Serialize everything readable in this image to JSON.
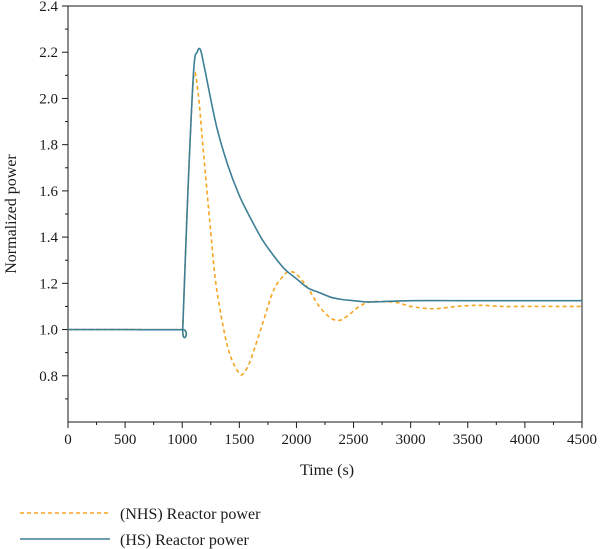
{
  "chart_data": {
    "type": "line",
    "title": "",
    "xlabel": "Time (s)",
    "ylabel": "Normalized power",
    "xlim": [
      0,
      4500
    ],
    "ylim": [
      0.6,
      2.4
    ],
    "xticks": [
      0,
      500,
      1000,
      1500,
      2000,
      2500,
      3000,
      3500,
      4000,
      4500
    ],
    "yticks": [
      0.8,
      1.0,
      1.2,
      1.4,
      1.6,
      1.8,
      2.0,
      2.2,
      2.4
    ],
    "xtick_labels": [
      "0",
      "500",
      "1000",
      "1500",
      "2000",
      "2500",
      "3000",
      "3500",
      "4000",
      "4500"
    ],
    "ytick_labels": [
      "0.8",
      "1.0",
      "1.2",
      "1.4",
      "1.6",
      "1.8",
      "2.0",
      "2.2",
      "2.4"
    ],
    "grid": false,
    "legend_position": "bottom-left, below plot",
    "series": [
      {
        "name": "(NHS) Reactor power",
        "color": "#f5a623",
        "style": "dashed",
        "x": [
          0,
          500,
          1000,
          1005,
          1050,
          1100,
          1140,
          1180,
          1250,
          1300,
          1400,
          1500,
          1550,
          1600,
          1700,
          1800,
          1900,
          1950,
          2000,
          2100,
          2200,
          2300,
          2380,
          2450,
          2550,
          2650,
          2800,
          2900,
          3000,
          3200,
          3400,
          3600,
          3800,
          4000,
          4200,
          4500
        ],
        "y": [
          1.0,
          1.0,
          1.0,
          1.01,
          1.6,
          2.09,
          2.02,
          1.8,
          1.42,
          1.18,
          0.92,
          0.81,
          0.82,
          0.87,
          1.02,
          1.17,
          1.24,
          1.25,
          1.24,
          1.18,
          1.1,
          1.05,
          1.04,
          1.06,
          1.1,
          1.12,
          1.12,
          1.115,
          1.1,
          1.09,
          1.1,
          1.105,
          1.1,
          1.1,
          1.1,
          1.1
        ]
      },
      {
        "name": "(HS) Reactor power",
        "color": "#3d7f96",
        "style": "solid",
        "x": [
          0,
          500,
          1000,
          1005,
          1050,
          1100,
          1130,
          1160,
          1200,
          1300,
          1400,
          1500,
          1600,
          1700,
          1800,
          1900,
          2000,
          2100,
          2200,
          2300,
          2400,
          2500,
          2600,
          2700,
          3000,
          3500,
          4000,
          4500
        ],
        "y": [
          1.0,
          1.0,
          1.0,
          1.01,
          1.6,
          2.12,
          2.2,
          2.21,
          2.12,
          1.88,
          1.71,
          1.58,
          1.48,
          1.39,
          1.32,
          1.26,
          1.22,
          1.18,
          1.16,
          1.14,
          1.13,
          1.125,
          1.12,
          1.12,
          1.125,
          1.125,
          1.125,
          1.125
        ]
      }
    ]
  }
}
